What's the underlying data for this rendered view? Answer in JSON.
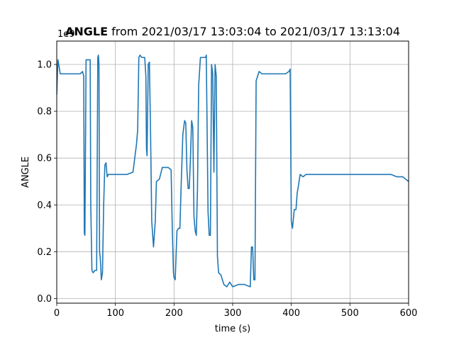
{
  "chart_data": {
    "type": "line",
    "title_bold": "ANGLE",
    "title_rest": " from 2021/03/17 13:03:04 to 2021/03/17 13:13:04",
    "xlabel": "time (s)",
    "ylabel": "ANGLE",
    "offset_text": "1e9",
    "xlim": [
      0,
      600
    ],
    "ylim": [
      -0.02,
      1.1
    ],
    "x_ticks": [
      0,
      100,
      200,
      300,
      400,
      500,
      600
    ],
    "y_ticks": [
      0.0,
      0.2,
      0.4,
      0.6,
      0.8,
      1.0
    ],
    "x_tick_labels": [
      "0",
      "100",
      "200",
      "300",
      "400",
      "500",
      "600"
    ],
    "y_tick_labels": [
      "0.0",
      "0.2",
      "0.4",
      "0.6",
      "0.8",
      "1.0"
    ],
    "grid": true,
    "line_color": "#1f77b4",
    "series": [
      {
        "x": [
          0,
          2,
          4,
          6,
          10,
          20,
          30,
          40,
          44,
          46,
          47,
          48,
          50,
          52,
          55,
          57,
          58,
          60,
          62,
          65,
          68,
          70,
          71,
          72,
          73,
          74,
          75,
          76,
          78,
          80,
          82,
          84,
          85,
          86,
          88,
          90,
          95,
          100,
          110,
          120,
          130,
          136,
          138,
          140,
          142,
          145,
          150,
          152,
          153,
          154,
          156,
          158,
          160,
          162,
          165,
          168,
          170,
          175,
          180,
          185,
          190,
          195,
          197,
          199,
          200,
          202,
          205,
          208,
          210,
          212,
          215,
          218,
          220,
          222,
          224,
          226,
          228,
          230,
          232,
          234,
          236,
          238,
          240,
          242,
          245,
          250,
          252,
          254,
          255,
          258,
          260,
          262,
          264,
          266,
          268,
          270,
          272,
          274,
          276,
          280,
          285,
          290,
          295,
          300,
          310,
          320,
          330,
          332,
          334,
          336,
          338,
          340,
          345,
          350,
          360,
          370,
          380,
          390,
          396,
          398,
          400,
          402,
          405,
          408,
          410,
          412,
          415,
          420,
          425,
          430,
          440,
          450,
          460,
          470,
          480,
          490,
          500,
          510,
          520,
          530,
          540,
          550,
          560,
          570,
          580,
          590,
          600
        ],
        "values": [
          0.87,
          1.02,
          0.99,
          0.96,
          0.96,
          0.96,
          0.96,
          0.96,
          0.97,
          0.95,
          0.28,
          0.27,
          1.02,
          1.02,
          1.02,
          1.02,
          0.4,
          0.12,
          0.11,
          0.12,
          0.12,
          1.03,
          1.04,
          1.0,
          0.2,
          0.18,
          0.14,
          0.08,
          0.11,
          0.4,
          0.57,
          0.58,
          0.55,
          0.52,
          0.53,
          0.53,
          0.53,
          0.53,
          0.53,
          0.53,
          0.54,
          0.66,
          0.72,
          1.03,
          1.04,
          1.03,
          1.03,
          0.95,
          0.64,
          0.61,
          1.0,
          1.01,
          0.7,
          0.33,
          0.22,
          0.33,
          0.5,
          0.51,
          0.56,
          0.56,
          0.56,
          0.55,
          0.3,
          0.11,
          0.09,
          0.08,
          0.29,
          0.3,
          0.3,
          0.47,
          0.7,
          0.76,
          0.75,
          0.55,
          0.47,
          0.47,
          0.6,
          0.76,
          0.73,
          0.35,
          0.29,
          0.27,
          0.47,
          0.91,
          1.03,
          1.03,
          1.03,
          1.03,
          1.04,
          0.37,
          0.27,
          0.27,
          1.0,
          0.96,
          0.54,
          1.0,
          0.95,
          0.18,
          0.11,
          0.1,
          0.06,
          0.05,
          0.07,
          0.05,
          0.06,
          0.06,
          0.05,
          0.22,
          0.22,
          0.08,
          0.08,
          0.93,
          0.97,
          0.96,
          0.96,
          0.96,
          0.96,
          0.96,
          0.97,
          0.98,
          0.33,
          0.3,
          0.38,
          0.38,
          0.45,
          0.48,
          0.53,
          0.52,
          0.53,
          0.53,
          0.53,
          0.53,
          0.53,
          0.53,
          0.53,
          0.53,
          0.53,
          0.53,
          0.53,
          0.53,
          0.53,
          0.53,
          0.53,
          0.53,
          0.52,
          0.52,
          0.5
        ]
      }
    ]
  }
}
